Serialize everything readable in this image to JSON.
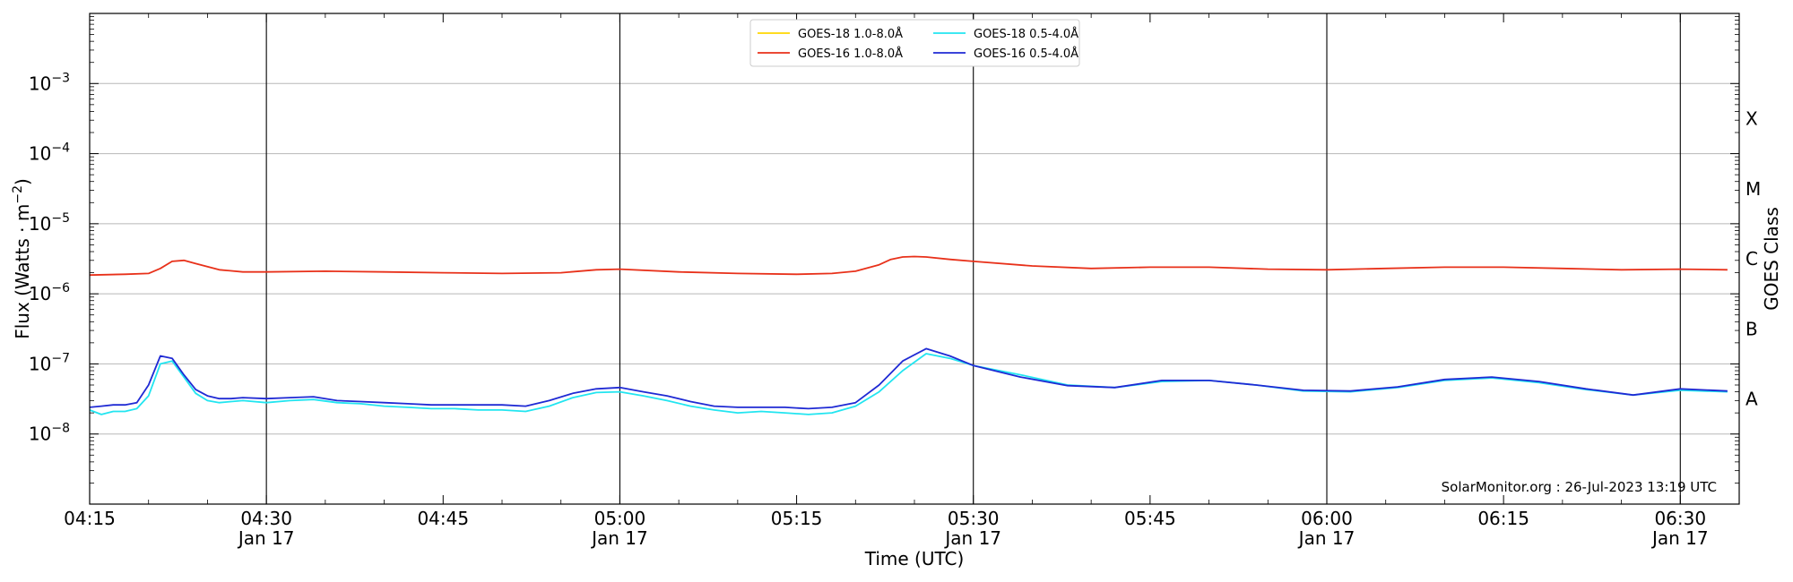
{
  "chart_data": {
    "type": "line",
    "title": "",
    "xlabel": "Time (UTC)",
    "ylabel": "Flux (Watts · m",
    "ylabel_sup": "−2",
    "ylabel_close": ")",
    "y2label": "GOES Class",
    "yscale": "log",
    "ylim": [
      1e-09,
      0.01
    ],
    "xlim": [
      "04:15",
      "06:35"
    ],
    "x_unit": "minutes of day (UTC)",
    "grid": "horizontal",
    "legend_position": "top-center",
    "x_ticks": [
      {
        "minute": 255,
        "line1": "04:15",
        "line2": ""
      },
      {
        "minute": 270,
        "line1": "04:30",
        "line2": "Jan 17"
      },
      {
        "minute": 285,
        "line1": "04:45",
        "line2": ""
      },
      {
        "minute": 300,
        "line1": "05:00",
        "line2": "Jan 17"
      },
      {
        "minute": 315,
        "line1": "05:15",
        "line2": ""
      },
      {
        "minute": 330,
        "line1": "05:30",
        "line2": "Jan 17"
      },
      {
        "minute": 345,
        "line1": "05:45",
        "line2": ""
      },
      {
        "minute": 360,
        "line1": "06:00",
        "line2": "Jan 17"
      },
      {
        "minute": 375,
        "line1": "06:15",
        "line2": ""
      },
      {
        "minute": 390,
        "line1": "06:30",
        "line2": "Jan 17"
      }
    ],
    "vertical_lines": [
      270,
      300,
      330,
      360,
      390
    ],
    "y_ticks": [
      {
        "exp": -8,
        "label": "10",
        "sup": "−8"
      },
      {
        "exp": -7,
        "label": "10",
        "sup": "−7"
      },
      {
        "exp": -6,
        "label": "10",
        "sup": "−6"
      },
      {
        "exp": -5,
        "label": "10",
        "sup": "−5"
      },
      {
        "exp": -4,
        "label": "10",
        "sup": "−4"
      },
      {
        "exp": -3,
        "label": "10",
        "sup": "−3"
      }
    ],
    "class_labels": [
      {
        "exp": -8,
        "label": "A"
      },
      {
        "exp": -7,
        "label": "B"
      },
      {
        "exp": -6,
        "label": "C"
      },
      {
        "exp": -5,
        "label": "M"
      },
      {
        "exp": -4,
        "label": "X"
      }
    ],
    "series": [
      {
        "name": "GOES-18 1.0-8.0Å",
        "color": "#ffd700",
        "x": [],
        "y": []
      },
      {
        "name": "GOES-16 1.0-8.0Å",
        "color": "#e8311a",
        "x": [
          255,
          258,
          260,
          261,
          262,
          263,
          264,
          266,
          268,
          270,
          275,
          280,
          285,
          290,
          295,
          298,
          300,
          305,
          310,
          315,
          318,
          320,
          322,
          323,
          324,
          325,
          326,
          328,
          330,
          335,
          340,
          345,
          350,
          355,
          360,
          365,
          370,
          375,
          380,
          385,
          390,
          394
        ],
        "y": [
          1.85e-06,
          1.9e-06,
          1.95e-06,
          2.3e-06,
          2.9e-06,
          3e-06,
          2.7e-06,
          2.2e-06,
          2.05e-06,
          2.05e-06,
          2.1e-06,
          2.05e-06,
          2e-06,
          1.95e-06,
          2e-06,
          2.2e-06,
          2.25e-06,
          2.05e-06,
          1.95e-06,
          1.9e-06,
          1.95e-06,
          2.1e-06,
          2.6e-06,
          3.1e-06,
          3.35e-06,
          3.4e-06,
          3.35e-06,
          3.1e-06,
          2.9e-06,
          2.5e-06,
          2.3e-06,
          2.4e-06,
          2.4e-06,
          2.25e-06,
          2.2e-06,
          2.3e-06,
          2.4e-06,
          2.4e-06,
          2.3e-06,
          2.2e-06,
          2.25e-06,
          2.2e-06
        ]
      },
      {
        "name": "GOES-18 0.5-4.0Å",
        "color": "#22e5f0",
        "x": [
          255,
          256,
          257,
          258,
          259,
          260,
          261,
          262,
          263,
          264,
          265,
          266,
          267,
          268,
          270,
          272,
          274,
          276,
          278,
          280,
          282,
          284,
          286,
          288,
          290,
          292,
          294,
          296,
          298,
          300,
          302,
          304,
          306,
          308,
          310,
          312,
          314,
          316,
          318,
          320,
          322,
          324,
          326,
          328,
          330,
          334,
          338,
          342,
          346,
          350,
          354,
          358,
          362,
          366,
          370,
          374,
          378,
          382,
          386,
          390,
          394
        ],
        "y": [
          2.2e-08,
          1.9e-08,
          2.1e-08,
          2.1e-08,
          2.3e-08,
          3.5e-08,
          1e-07,
          1.1e-07,
          6.5e-08,
          3.8e-08,
          3e-08,
          2.8e-08,
          2.9e-08,
          3e-08,
          2.8e-08,
          3e-08,
          3.1e-08,
          2.8e-08,
          2.7e-08,
          2.5e-08,
          2.4e-08,
          2.3e-08,
          2.3e-08,
          2.2e-08,
          2.2e-08,
          2.1e-08,
          2.5e-08,
          3.3e-08,
          3.9e-08,
          4e-08,
          3.5e-08,
          3e-08,
          2.5e-08,
          2.2e-08,
          2e-08,
          2.1e-08,
          2e-08,
          1.9e-08,
          2e-08,
          2.5e-08,
          4e-08,
          8e-08,
          1.4e-07,
          1.2e-07,
          9.5e-08,
          7e-08,
          5e-08,
          4.6e-08,
          5.6e-08,
          5.8e-08,
          5e-08,
          4.1e-08,
          4e-08,
          4.6e-08,
          5.8e-08,
          6.3e-08,
          5.4e-08,
          4.3e-08,
          3.6e-08,
          4.2e-08,
          4e-08
        ]
      },
      {
        "name": "GOES-16 0.5-4.0Å",
        "color": "#1f2ad4",
        "x": [
          255,
          256,
          257,
          258,
          259,
          260,
          261,
          262,
          263,
          264,
          265,
          266,
          267,
          268,
          270,
          272,
          274,
          276,
          278,
          280,
          282,
          284,
          286,
          288,
          290,
          292,
          294,
          296,
          298,
          300,
          302,
          304,
          306,
          308,
          310,
          312,
          314,
          316,
          318,
          320,
          322,
          324,
          326,
          328,
          330,
          334,
          338,
          342,
          346,
          350,
          354,
          358,
          362,
          366,
          370,
          374,
          378,
          382,
          386,
          390,
          394
        ],
        "y": [
          2.4e-08,
          2.5e-08,
          2.6e-08,
          2.6e-08,
          2.8e-08,
          5e-08,
          1.3e-07,
          1.2e-07,
          7e-08,
          4.3e-08,
          3.5e-08,
          3.2e-08,
          3.2e-08,
          3.3e-08,
          3.2e-08,
          3.3e-08,
          3.4e-08,
          3e-08,
          2.9e-08,
          2.8e-08,
          2.7e-08,
          2.6e-08,
          2.6e-08,
          2.6e-08,
          2.6e-08,
          2.5e-08,
          3e-08,
          3.8e-08,
          4.4e-08,
          4.6e-08,
          4e-08,
          3.5e-08,
          2.9e-08,
          2.5e-08,
          2.4e-08,
          2.4e-08,
          2.4e-08,
          2.3e-08,
          2.4e-08,
          2.8e-08,
          5e-08,
          1.1e-07,
          1.65e-07,
          1.3e-07,
          9.5e-08,
          6.5e-08,
          4.9e-08,
          4.6e-08,
          5.8e-08,
          5.8e-08,
          5e-08,
          4.2e-08,
          4.1e-08,
          4.7e-08,
          6e-08,
          6.5e-08,
          5.6e-08,
          4.4e-08,
          3.6e-08,
          4.4e-08,
          4.1e-08
        ]
      }
    ],
    "annotation": "SolarMonitor.org : 26-Jul-2023 13:19 UTC"
  }
}
